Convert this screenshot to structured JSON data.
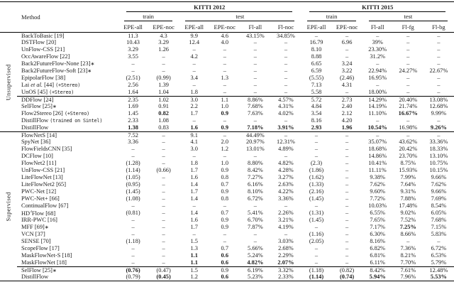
{
  "table": {
    "method_header": "Method",
    "groups": [
      {
        "label": "KITTI 2012",
        "sub": [
          {
            "label": "train",
            "span": 2
          },
          {
            "label": "test",
            "span": 4
          }
        ]
      },
      {
        "label": "KITTI 2015",
        "sub": [
          {
            "label": "train",
            "span": 2
          },
          {
            "label": "test",
            "span": 3
          }
        ]
      }
    ],
    "columns": [
      "EPE-all",
      "EPE-noc",
      "EPE-all",
      "EPE-noc",
      "Fl-all",
      "Fl-noc",
      "EPE-all",
      "EPE-noc",
      "Fl-all",
      "Fl-fg",
      "Fl-bg"
    ],
    "sections": [
      {
        "label": "Unsupervised",
        "rows": [
          {
            "name": [
              [
                "BackToBasic [19]"
              ]
            ],
            "cells": [
              "11.3",
              "4.3",
              "9.9",
              "4.6",
              "43.15%",
              "34.85%",
              "–",
              "–",
              "–",
              "–",
              "–"
            ],
            "bold": [],
            "rule": false
          },
          {
            "name": [
              [
                "DSTFlow [20]"
              ]
            ],
            "cells": [
              "10.43",
              "3.29",
              "12.4",
              "4.0",
              "–",
              "–",
              "16.79",
              "6.96",
              "39%",
              "–",
              "–"
            ],
            "bold": [],
            "rule": false
          },
          {
            "name": [
              [
                "UnFlow-CSS [21]"
              ]
            ],
            "cells": [
              "3.29",
              "1.26",
              "–",
              "–",
              "–",
              "–",
              "8.10",
              "–",
              "23.30%",
              "–",
              "–"
            ],
            "bold": [],
            "rule": false
          },
          {
            "name": [
              [
                "OccAwareFlow [22]"
              ]
            ],
            "cells": [
              "3.55",
              "–",
              "4.2",
              "–",
              "–",
              "–",
              "8.88",
              "–",
              "31.2%",
              "–",
              "–"
            ],
            "bold": [],
            "rule": false
          },
          {
            "name": [
              [
                "Back2FutureFlow-None [23]"
              ],
              [
                "∗",
                "a"
              ]
            ],
            "cells": [
              "–",
              "–",
              "–",
              "–",
              "–",
              "–",
              "6.65",
              "3.24",
              "–",
              "–",
              "–"
            ],
            "bold": [],
            "rule": false
          },
          {
            "name": [
              [
                "Back2FutureFlow-Soft [23]"
              ],
              [
                "∗",
                "a"
              ]
            ],
            "cells": [
              "–",
              "–",
              "–",
              "–",
              "–",
              "–",
              "6.59",
              "3.22",
              "22.94%",
              "24.27%",
              "22.67%"
            ],
            "bold": [],
            "rule": false
          },
          {
            "name": [
              [
                "EpipolarFlow [38]"
              ]
            ],
            "cells": [
              "(2.51)",
              "(0.99)",
              "3.4",
              "1.3",
              "–",
              "–",
              "(5.55)",
              "(2.46)",
              "16.95%",
              "–",
              "–"
            ],
            "bold": [],
            "rule": false
          },
          {
            "name": [
              [
                "Lai "
              ],
              [
                "et al.",
                "i"
              ],
              [
                " [44] "
              ],
              [
                "(+Stereo)",
                "m"
              ]
            ],
            "cells": [
              "2.56",
              "1.39",
              "–",
              "–",
              "–",
              "–",
              "7.13",
              "4.31",
              "–",
              "–",
              "–"
            ],
            "bold": [],
            "rule": false
          },
          {
            "name": [
              [
                "UnOS [45] "
              ],
              [
                "(+Stereo)",
                "m"
              ]
            ],
            "cells": [
              "1.64",
              "1.04",
              "1.8",
              "–",
              "–",
              "–",
              "5.58",
              "–",
              "18.00%",
              "–",
              "–"
            ],
            "bold": [],
            "rule": false
          },
          {
            "name": [
              [
                "DDFlow [24]"
              ]
            ],
            "cells": [
              "2.35",
              "1.02",
              "3.0",
              "1.1",
              "8.86%",
              "4.57%",
              "5.72",
              "2.73",
              "14.29%",
              "20.40%",
              "13.08%"
            ],
            "bold": [],
            "rule": true
          },
          {
            "name": [
              [
                "SelFlow [25]"
              ],
              [
                "∗",
                "a"
              ]
            ],
            "cells": [
              "1.69",
              "0.91",
              "2.2",
              "1.0",
              "7.68%",
              "4.31%",
              "4.84",
              "2.40",
              "14.19%",
              "21.74%",
              "12.68%"
            ],
            "bold": [],
            "rule": false
          },
          {
            "name": [
              [
                "Flow2Stereo [26] "
              ],
              [
                "(+Stereo)",
                "m"
              ]
            ],
            "cells": [
              "1.45",
              "0.82",
              "1.7",
              "0.9",
              "7.63%",
              "4.02%",
              "3.54",
              "2.12",
              "11.10%",
              "16.67%",
              "9.99%"
            ],
            "bold": [
              1,
              3,
              9
            ],
            "rule": false
          },
          {
            "name": [
              [
                "DistillFlow "
              ],
              [
                "(trained on Sintel)",
                "m"
              ]
            ],
            "cells": [
              "2.33",
              "1.08",
              "–",
              "–",
              "–",
              "–",
              "8.16",
              "4.20",
              "–",
              "–",
              "–"
            ],
            "bold": [],
            "rule": false
          },
          {
            "name": [
              [
                "DistillFlow"
              ]
            ],
            "cells": [
              "1.38",
              "0.83",
              "1.6",
              "0.9",
              "7.18%",
              "3.91%",
              "2.93",
              "1.96",
              "10.54%",
              "16.98%",
              "9.26%"
            ],
            "bold": [
              0,
              2,
              3,
              4,
              5,
              6,
              7,
              8,
              10
            ],
            "rule": false
          }
        ]
      },
      {
        "label": "Supervised",
        "rows": [
          {
            "name": [
              [
                "FlowNetS [14]"
              ]
            ],
            "cells": [
              "7.52",
              "–",
              "9.1",
              "–",
              "44.49%",
              "–",
              "–",
              "–",
              "–",
              "–",
              "–"
            ],
            "bold": [],
            "rule": false
          },
          {
            "name": [
              [
                "SpyNet [36]"
              ]
            ],
            "cells": [
              "3.36",
              "–",
              "4.1",
              "2.0",
              "20.97%",
              "12.31%",
              "–",
              "–",
              "35.07%",
              "43.62%",
              "33.36%"
            ],
            "bold": [],
            "rule": false
          },
          {
            "name": [
              [
                "FlowFieldsCNN [35]"
              ]
            ],
            "cells": [
              "–",
              "–",
              "3.0",
              "1.2",
              "13.01%",
              "4.89%",
              "–",
              "–",
              "18.68%",
              "20.42%",
              "18.33%"
            ],
            "bold": [],
            "rule": false
          },
          {
            "name": [
              [
                "DCFlow [10]"
              ]
            ],
            "cells": [
              "–",
              "–",
              "–",
              "–",
              "–",
              "–",
              "–",
              "–",
              "14.86%",
              "23.70%",
              "13.10%"
            ],
            "bold": [],
            "rule": false
          },
          {
            "name": [
              [
                "FlowNet2 [11]"
              ]
            ],
            "cells": [
              "(1.28)",
              "–",
              "1.8",
              "1.0",
              "8.80%",
              "4.82%",
              "(2.3)",
              "–",
              "10.41%",
              "8.75%",
              "10.75%"
            ],
            "bold": [],
            "rule": false
          },
          {
            "name": [
              [
                "UnFlow-CSS [21]"
              ]
            ],
            "cells": [
              "(1.14)",
              "(0.66)",
              "1.7",
              "0.9",
              "8.42%",
              "4.28%",
              "(1.86)",
              "–",
              "11.11%",
              "15.93%",
              "10.15%"
            ],
            "bold": [],
            "rule": false
          },
          {
            "name": [
              [
                "LiteFlowNet [13]"
              ]
            ],
            "cells": [
              "(1.05)",
              "–",
              "1.6",
              "0.8",
              "7.27%",
              "3.27%",
              "(1.62)",
              "–",
              "9.38%",
              "7.99%",
              "9.66%"
            ],
            "bold": [],
            "rule": false
          },
          {
            "name": [
              [
                "LiteFlowNet2 [65]"
              ]
            ],
            "cells": [
              "(0.95)",
              "–",
              "1.4",
              "0.7",
              "6.16%",
              "2.63%",
              "(1.33)",
              "–",
              "7.62%",
              "7.64%",
              "7.62%"
            ],
            "bold": [],
            "rule": false
          },
          {
            "name": [
              [
                "PWC-Net [12]"
              ]
            ],
            "cells": [
              "(1.45)",
              "–",
              "1.7",
              "0.9",
              "8.10%",
              "4.22%",
              "(2.16)",
              "–",
              "9.60%",
              "9.31%",
              "9.66%"
            ],
            "bold": [],
            "rule": false
          },
          {
            "name": [
              [
                "PWC-Net+ [66]"
              ]
            ],
            "cells": [
              "(1.08)",
              "–",
              "1.4",
              "0.8",
              "6.72%",
              "3.36%",
              "(1.45)",
              "–",
              "7.72%",
              "7.88%",
              "7.69%"
            ],
            "bold": [],
            "rule": false
          },
          {
            "name": [
              [
                "ContinualFlow [67]"
              ]
            ],
            "cells": [
              "–",
              "–",
              "–",
              "–",
              "–",
              "–",
              "–",
              "–",
              "10.03%",
              "17.48%",
              "8.54%"
            ],
            "bold": [],
            "rule": false
          },
          {
            "name": [
              [
                "HD"
              ],
              [
                "3",
                "s"
              ],
              [
                "Flow [68]"
              ]
            ],
            "cells": [
              "(0.81)",
              "–",
              "1.4",
              "0.7",
              "5.41%",
              "2.26%",
              "(1.31)",
              "–",
              "6.55%",
              "9.02%",
              "6.05%"
            ],
            "bold": [],
            "rule": false
          },
          {
            "name": [
              [
                "IRR-PWC [16]"
              ]
            ],
            "cells": [
              "–",
              "–",
              "1.6",
              "0.9",
              "6.70%",
              "3.21%",
              "(1.45)",
              "–",
              "7.65%",
              "7.52%",
              "7.68%"
            ],
            "bold": [],
            "rule": false
          },
          {
            "name": [
              [
                "MFF [69]"
              ],
              [
                "∗",
                "a"
              ]
            ],
            "cells": [
              "–",
              "–",
              "1.7",
              "0.9",
              "7.87%",
              "4.19%",
              "–",
              "–",
              "7.17%",
              "7.25%",
              "7.15%"
            ],
            "bold": [
              9
            ],
            "rule": false
          },
          {
            "name": [
              [
                "VCN [37]"
              ]
            ],
            "cells": [
              "–",
              "–",
              "–",
              "–",
              "–",
              "–",
              "(1.16)",
              "–",
              "6.30%",
              "8.66%",
              "5.83%"
            ],
            "bold": [],
            "rule": false
          },
          {
            "name": [
              [
                "SENSE [70]"
              ]
            ],
            "cells": [
              "(1.18)",
              "–",
              "1.5",
              "–",
              "–",
              "3.03%",
              "(2.05)",
              "–",
              "8.16%",
              "–",
              "–"
            ],
            "bold": [],
            "rule": false
          },
          {
            "name": [
              [
                "ScopeFlow [17]"
              ]
            ],
            "cells": [
              "–",
              "–",
              "1.3",
              "0.7",
              "5.66%",
              "2.68%",
              "–",
              "–",
              "6.82%",
              "7.36%",
              "6.72%"
            ],
            "bold": [],
            "rule": false
          },
          {
            "name": [
              [
                "MaskFlowNet-S [18]"
              ]
            ],
            "cells": [
              "–",
              "–",
              "1.1",
              "0.6",
              "5.24%",
              "2.29%",
              "–",
              "–",
              "6.81%",
              "8.21%",
              "6.53%"
            ],
            "bold": [
              2,
              3
            ],
            "rule": false
          },
          {
            "name": [
              [
                "MaskFlowNet [18]"
              ]
            ],
            "cells": [
              "–",
              "–",
              "1.1",
              "0.6",
              "4.82%",
              "2.07%",
              "–",
              "–",
              "6.11%",
              "7.70%",
              "5.79%"
            ],
            "bold": [
              2,
              3,
              4,
              5
            ],
            "rule": false
          },
          {
            "name": [
              [
                "SelFlow [25]"
              ],
              [
                "∗",
                "a"
              ]
            ],
            "cells": [
              "(0.76)",
              "(0.47)",
              "1.5",
              "0.9",
              "6.19%",
              "3.32%",
              "(1.18)",
              "(0.82)",
              "8.42%",
              "7.61%",
              "12.48%"
            ],
            "bold": [
              0
            ],
            "rule": true
          },
          {
            "name": [
              [
                "DistillFlow"
              ]
            ],
            "cells": [
              "(0.79)",
              "(0.45)",
              "1.2",
              "0.6",
              "5.23%",
              "2.33%",
              "(1.14)",
              "(0.74)",
              "5.94%",
              "7.96%",
              "5.53%"
            ],
            "bold": [
              1,
              3,
              6,
              7,
              8,
              10
            ],
            "rule": false
          }
        ]
      }
    ]
  }
}
